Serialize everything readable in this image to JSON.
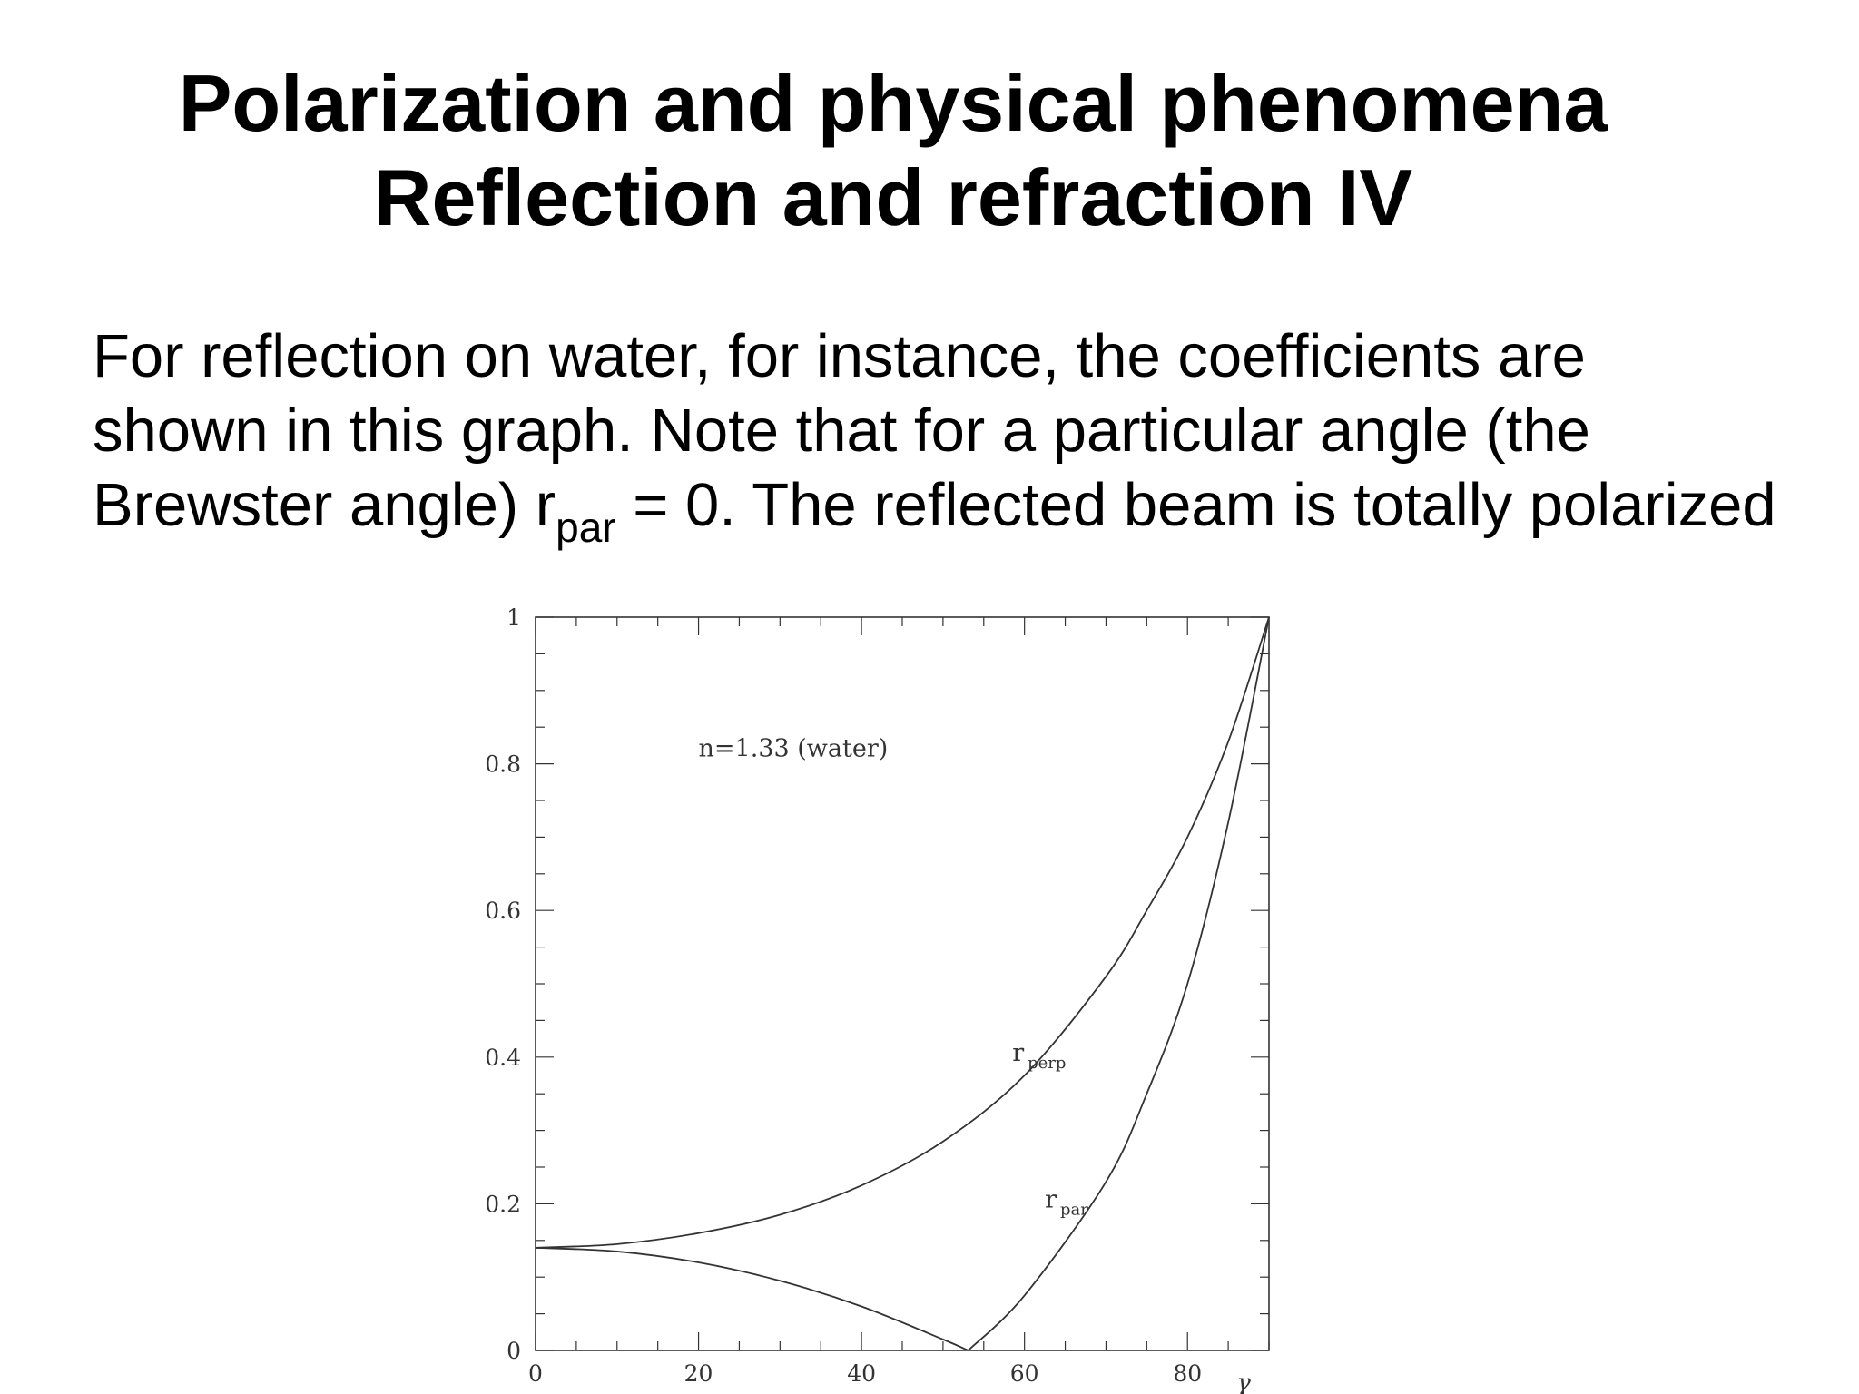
{
  "slide": {
    "title_line1": "Polarization and physical phenomena",
    "title_line2": "Reflection and refraction IV",
    "body": {
      "line1": "For reflection on water, for instance, the coefficients are",
      "line2": "shown in this graph. Note that for a particular angle (the",
      "line3_before": "Brewster angle) r",
      "line3_sub": "par",
      "line3_after": " = 0. The reflected beam is totally polarized"
    }
  },
  "chart_data": {
    "type": "line",
    "title": "",
    "annotation": "n=1.33 (water)",
    "xlabel": "γ",
    "ylabel": "",
    "xlim": [
      0,
      90
    ],
    "ylim": [
      0,
      1
    ],
    "xticks": [
      "0",
      "20",
      "40",
      "60",
      "80"
    ],
    "yticks": [
      "0",
      "0.2",
      "0.4",
      "0.6",
      "0.8",
      "1"
    ],
    "grid": false,
    "series": [
      {
        "name": "r_perp",
        "label_main": "r",
        "label_sub": "perp",
        "x": [
          0,
          10,
          20,
          30,
          40,
          50,
          60,
          70,
          75,
          80,
          85,
          90
        ],
        "y": [
          0.14,
          0.145,
          0.16,
          0.185,
          0.225,
          0.285,
          0.375,
          0.51,
          0.6,
          0.7,
          0.83,
          1.0
        ]
      },
      {
        "name": "r_par",
        "label_main": "r",
        "label_sub": "par",
        "x": [
          0,
          10,
          20,
          30,
          40,
          50,
          53.1,
          60,
          70,
          75,
          80,
          85,
          90
        ],
        "y": [
          0.14,
          0.135,
          0.12,
          0.095,
          0.06,
          0.015,
          0.0,
          0.075,
          0.23,
          0.35,
          0.5,
          0.72,
          1.0
        ]
      }
    ]
  }
}
